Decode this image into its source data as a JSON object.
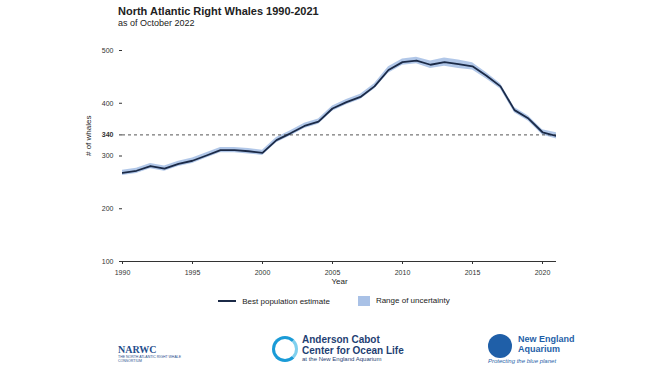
{
  "chart_data": {
    "type": "line",
    "title": "North Atlantic Right Whales 1990-2021",
    "subtitle": "as of October 2022",
    "x_label": "Year",
    "y_label": "# of whales",
    "x": [
      1990,
      1991,
      1992,
      1993,
      1994,
      1995,
      1996,
      1997,
      1998,
      1999,
      2000,
      2001,
      2002,
      2003,
      2004,
      2005,
      2006,
      2007,
      2008,
      2009,
      2010,
      2011,
      2012,
      2013,
      2014,
      2015,
      2016,
      2017,
      2018,
      2019,
      2020,
      2021
    ],
    "series": [
      {
        "name": "Best population estimate",
        "color": "#1b2a47",
        "type": "line",
        "values": [
          268,
          272,
          281,
          276,
          285,
          291,
          301,
          311,
          311,
          309,
          306,
          330,
          343,
          357,
          365,
          390,
          402,
          412,
          432,
          463,
          478,
          481,
          473,
          478,
          474,
          470,
          452,
          432,
          387,
          371,
          345,
          338
        ]
      },
      {
        "name": "Range of uncertainty",
        "color": "#a9c1e6",
        "type": "area",
        "lower": [
          263,
          267,
          276,
          271,
          280,
          286,
          296,
          306,
          306,
          304,
          301,
          325,
          338,
          352,
          360,
          385,
          397,
          407,
          427,
          457,
          472,
          475,
          466,
          470,
          466,
          463,
          446,
          427,
          382,
          366,
          340,
          332
        ],
        "upper": [
          273,
          277,
          286,
          281,
          290,
          296,
          306,
          316,
          316,
          314,
          311,
          335,
          348,
          362,
          370,
          395,
          407,
          417,
          437,
          469,
          484,
          487,
          480,
          486,
          482,
          477,
          458,
          437,
          392,
          376,
          350,
          344
        ]
      }
    ],
    "reference_line": 340,
    "xlim": [
      1990,
      2021
    ],
    "xticks": [
      1990,
      1995,
      2000,
      2005,
      2010,
      2015,
      2020
    ],
    "ylim": [
      100,
      500
    ],
    "yticks": [
      100,
      200,
      300,
      340,
      400,
      500
    ],
    "grid": false,
    "legend": "bottom",
    "logos": [
      [
        "NARWC",
        "THE NORTH ATLANTIC RIGHT WHALE CONSORTIUM"
      ],
      [
        "Anderson Cabot",
        "Center for Ocean Life",
        "at the New England Aquarium"
      ],
      [
        "New England",
        "Aquarium",
        "Protecting the blue planet"
      ]
    ]
  }
}
